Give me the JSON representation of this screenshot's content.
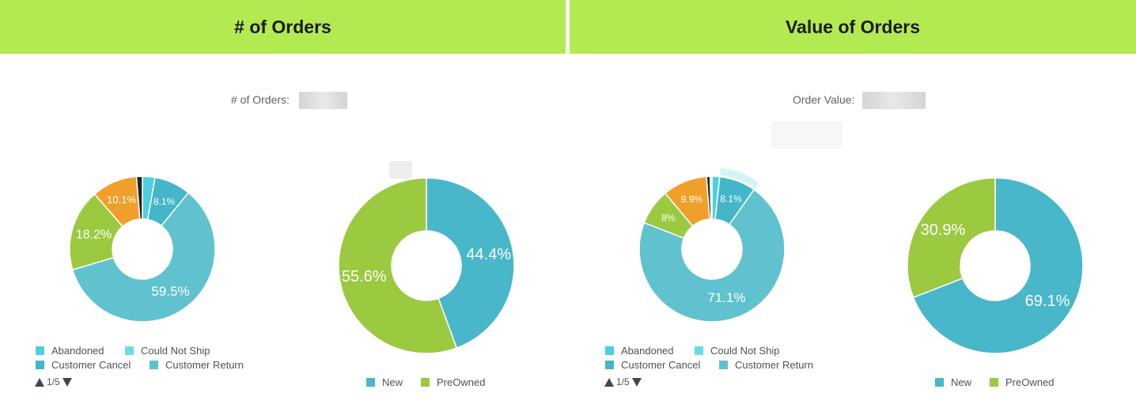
{
  "headers": {
    "left": "# of Orders",
    "right": "Value of Orders"
  },
  "metrics": {
    "orders_label": "# of Orders:",
    "value_label": "Order Value:"
  },
  "colors": {
    "header_bg": "#b3ea52",
    "abandoned": "#4ecfe0",
    "could_not_ship": "#6bdcea",
    "customer_cancel": "#44b6c9",
    "customer_return": "#5fc2ce",
    "green": "#9bc940",
    "orange": "#f0a02a",
    "dark": "#222222",
    "new": "#48b7c9"
  },
  "pager": {
    "left": "1/5",
    "right": "1/5"
  },
  "chart_data": [
    {
      "type": "pie",
      "title": "",
      "labels": [
        "",
        "",
        "",
        "",
        "",
        ""
      ],
      "values": [
        2.8,
        8.1,
        59.5,
        18.2,
        10.1,
        1.3
      ],
      "display_labels": [
        "",
        "8.1%",
        "59.5%",
        "18.2%",
        "10.1%",
        ""
      ],
      "legend": [
        "Abandoned",
        "Could Not Ship",
        "Customer Cancel",
        "Customer Return"
      ],
      "legend_page": "1/5"
    },
    {
      "type": "pie",
      "title": "",
      "labels": [
        "New",
        "PreOwned"
      ],
      "values": [
        44.4,
        55.6
      ],
      "display_labels": [
        "44.4%",
        "55.6%"
      ],
      "legend": [
        "New",
        "PreOwned"
      ]
    },
    {
      "type": "pie",
      "title": "",
      "labels": [
        "",
        "",
        "",
        "",
        "",
        "",
        ""
      ],
      "values": [
        1.7,
        8.1,
        71.1,
        8,
        9.9,
        0.8,
        0.4
      ],
      "display_labels": [
        "",
        "8.1%",
        "71.1%",
        "8%",
        "9.9%",
        "",
        ""
      ],
      "legend": [
        "Abandoned",
        "Could Not Ship",
        "Customer Cancel",
        "Customer Return"
      ],
      "legend_page": "1/5"
    },
    {
      "type": "pie",
      "title": "",
      "labels": [
        "New",
        "PreOwned"
      ],
      "values": [
        69.1,
        30.9
      ],
      "display_labels": [
        "69.1%",
        "30.9%"
      ],
      "legend": [
        "New",
        "PreOwned"
      ]
    }
  ]
}
